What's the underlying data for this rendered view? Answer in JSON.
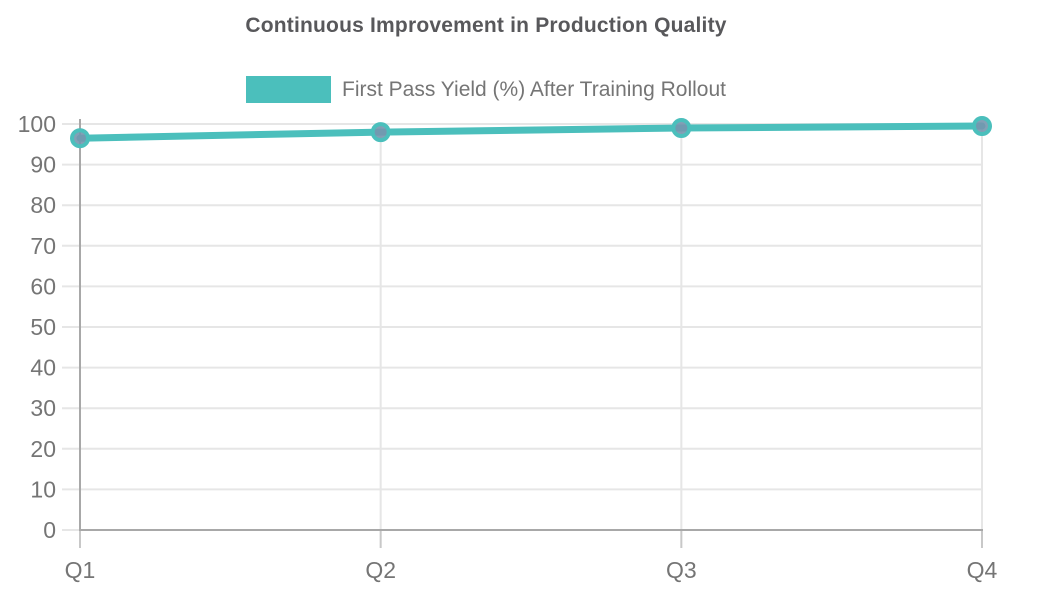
{
  "chart_data": {
    "type": "line",
    "title": "Continuous Improvement in Production Quality",
    "xlabel": "",
    "ylabel": "",
    "categories": [
      "Q1",
      "Q2",
      "Q3",
      "Q4"
    ],
    "series": [
      {
        "name": "First Pass Yield (%) After Training Rollout",
        "values": [
          96.5,
          98,
          99,
          99.5
        ]
      }
    ],
    "ylim": [
      0,
      100
    ],
    "yticks": [
      0,
      10,
      20,
      30,
      40,
      50,
      60,
      70,
      80,
      90,
      100
    ],
    "grid": true,
    "legend_position": "top-center",
    "colors": {
      "line": "#4BBFBC",
      "point_fill": "#7596AE",
      "grid": "#E6E6E6",
      "axis": "#A8A8A8",
      "tick": "#C8C8C8",
      "title": "#58585B",
      "labels": "#757575",
      "background": "#FFFFFF"
    }
  }
}
